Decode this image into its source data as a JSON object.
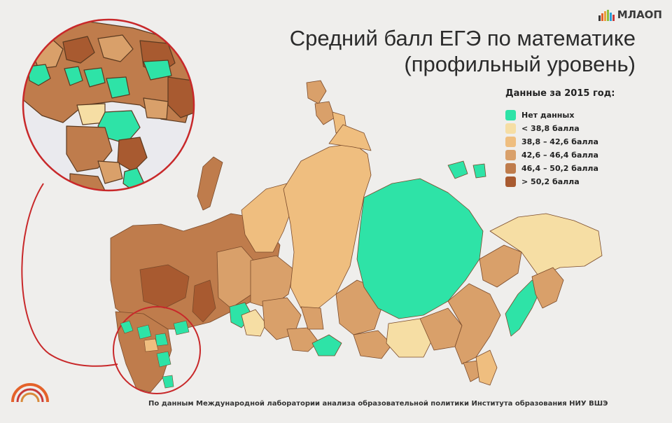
{
  "title": {
    "line1": "Средний балл ЕГЭ по математике",
    "line2": "(профильный уровень)"
  },
  "brand": {
    "name": "МЛАОП",
    "bar_colors": [
      "#3a3a3a",
      "#e4622a",
      "#e9a23b",
      "#8dbf3c",
      "#2a9fd8",
      "#c83a3a"
    ]
  },
  "legend": {
    "title": "Данные за 2015 год:",
    "items": [
      {
        "label": "Нет данных",
        "color": "#2ee3a7"
      },
      {
        "label": "< 38,8 балла",
        "color": "#f6dea4"
      },
      {
        "label": "38,8 – 42,6 балла",
        "color": "#efbe7f"
      },
      {
        "label": "42,6 – 46,4 балла",
        "color": "#d9a06a"
      },
      {
        "label": "46,4 – 50,2 балла",
        "color": "#bf7c4c"
      },
      {
        "label": "> 50,2 балла",
        "color": "#a85a30"
      }
    ]
  },
  "footnote": "По данным Международной лаборатории анализа образовательной политики Института образования НИУ ВШЭ",
  "colors": {
    "no_data": "#2ee3a7",
    "lt_38_8": "#f6dea4",
    "b_38_42": "#efbe7f",
    "b_42_46": "#d9a06a",
    "b_46_50": "#bf7c4c",
    "gt_50": "#a85a30",
    "zoom_ring": "#c8282a",
    "border": "#8a5a3a"
  }
}
